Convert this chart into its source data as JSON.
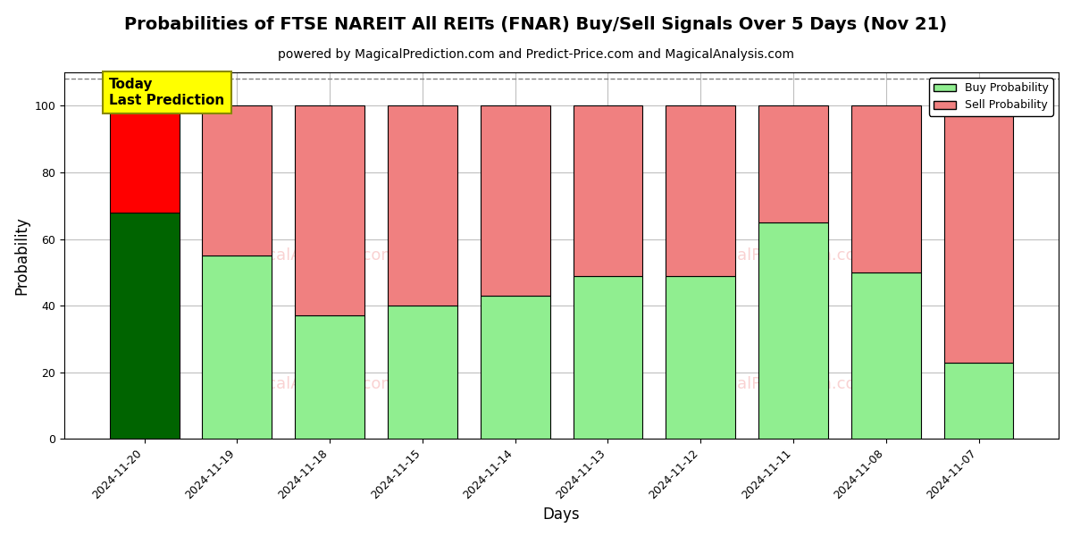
{
  "title": "Probabilities of FTSE NAREIT All REITs (FNAR) Buy/Sell Signals Over 5 Days (Nov 21)",
  "subtitle": "powered by MagicalPrediction.com and Predict-Price.com and MagicalAnalysis.com",
  "xlabel": "Days",
  "ylabel": "Probability",
  "dates": [
    "2024-11-20",
    "2024-11-19",
    "2024-11-18",
    "2024-11-15",
    "2024-11-14",
    "2024-11-13",
    "2024-11-12",
    "2024-11-11",
    "2024-11-08",
    "2024-11-07"
  ],
  "buy_values": [
    68,
    55,
    37,
    40,
    43,
    49,
    49,
    65,
    50,
    23
  ],
  "sell_values": [
    32,
    45,
    63,
    60,
    57,
    51,
    51,
    35,
    50,
    77
  ],
  "today_buy_color": "#006400",
  "today_sell_color": "#FF0000",
  "buy_color": "#90EE90",
  "sell_color": "#F08080",
  "bar_edge_color": "#000000",
  "ylim": [
    0,
    110
  ],
  "dashed_line_y": 108,
  "background_color": "#ffffff",
  "today_label_text": "Today\nLast Prediction",
  "today_label_bg": "#FFFF00",
  "legend_buy_label": "Buy Probability",
  "legend_sell_label": "Sell Probability",
  "title_fontsize": 14,
  "subtitle_fontsize": 10,
  "axis_label_fontsize": 12,
  "tick_fontsize": 9,
  "bar_width": 0.75
}
